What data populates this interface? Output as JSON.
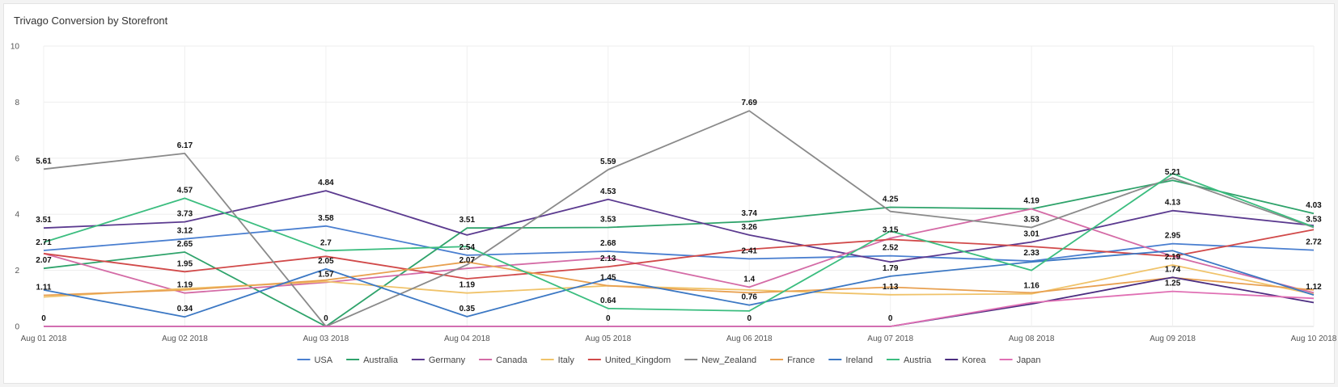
{
  "panel": {
    "title": "Trivago Conversion by Storefront"
  },
  "chart_data": {
    "type": "line",
    "title": "Trivago Conversion by Storefront",
    "xlabel": "",
    "ylabel": "",
    "ylim": [
      0,
      10
    ],
    "yticks": [
      0,
      2,
      4,
      6,
      8,
      10
    ],
    "grid": true,
    "legend_position": "bottom",
    "x": [
      "Aug 01 2018",
      "Aug 02 2018",
      "Aug 03 2018",
      "Aug 04 2018",
      "Aug 05 2018",
      "Aug 06 2018",
      "Aug 07 2018",
      "Aug 08 2018",
      "Aug 09 2018",
      "Aug 10 2018"
    ],
    "series": [
      {
        "name": "USA",
        "color": "#4a7fd0",
        "values": [
          2.71,
          3.12,
          3.58,
          2.54,
          2.68,
          2.41,
          2.52,
          2.33,
          2.95,
          2.72
        ]
      },
      {
        "name": "Australia",
        "color": "#2fa36b",
        "values": [
          2.07,
          2.65,
          0,
          3.51,
          3.53,
          3.74,
          4.25,
          4.19,
          5.21,
          4.03
        ]
      },
      {
        "name": "Germany",
        "color": "#5b3a8f",
        "values": [
          3.51,
          3.73,
          4.84,
          3.26,
          4.53,
          3.26,
          2.3,
          3.01,
          4.13,
          3.6
        ]
      },
      {
        "name": "Canada",
        "color": "#d46ba6",
        "values": [
          2.6,
          1.19,
          1.57,
          2.07,
          2.45,
          1.4,
          3.15,
          4.19,
          2.5,
          1.2
        ]
      },
      {
        "name": "Italy",
        "color": "#f0c36a",
        "values": [
          1.05,
          1.35,
          1.6,
          1.19,
          1.45,
          1.3,
          1.13,
          1.16,
          2.19,
          1.15
        ]
      },
      {
        "name": "United_Kingdom",
        "color": "#d14a4a",
        "values": [
          2.6,
          1.95,
          2.5,
          1.7,
          2.13,
          2.75,
          3.1,
          2.85,
          2.5,
          3.45
        ]
      },
      {
        "name": "New_Zealand",
        "color": "#8a8a8a",
        "values": [
          5.61,
          6.17,
          0,
          2.2,
          5.59,
          7.69,
          4.1,
          3.53,
          5.3,
          3.53
        ]
      },
      {
        "name": "France",
        "color": "#e8a050",
        "values": [
          1.11,
          1.3,
          1.65,
          2.3,
          1.45,
          1.2,
          1.4,
          1.2,
          1.74,
          1.3
        ]
      },
      {
        "name": "Ireland",
        "color": "#3c78c4",
        "values": [
          1.3,
          0.34,
          2.05,
          0.35,
          1.7,
          0.76,
          1.79,
          2.3,
          2.7,
          1.12
        ]
      },
      {
        "name": "Austria",
        "color": "#3bbd7f",
        "values": [
          3.0,
          4.57,
          2.7,
          2.85,
          0.64,
          0.55,
          3.4,
          2.0,
          5.45,
          3.55
        ]
      },
      {
        "name": "Korea",
        "color": "#4b2d80",
        "values": [
          0,
          0,
          0,
          0,
          0,
          0,
          0,
          0.8,
          1.75,
          0.85
        ]
      },
      {
        "name": "Japan",
        "color": "#e070b4",
        "values": [
          0,
          0,
          0,
          0,
          0,
          0,
          0,
          0.85,
          1.25,
          1.0
        ]
      }
    ],
    "data_labels": [
      {
        "x": "Aug 01 2018",
        "y": 5.61,
        "text": "5.61"
      },
      {
        "x": "Aug 01 2018",
        "y": 3.51,
        "text": "3.51"
      },
      {
        "x": "Aug 01 2018",
        "y": 2.71,
        "text": "2.71"
      },
      {
        "x": "Aug 01 2018",
        "y": 2.07,
        "text": "2.07"
      },
      {
        "x": "Aug 01 2018",
        "y": 1.11,
        "text": "1.11"
      },
      {
        "x": "Aug 01 2018",
        "y": 0,
        "text": "0"
      },
      {
        "x": "Aug 02 2018",
        "y": 6.17,
        "text": "6.17"
      },
      {
        "x": "Aug 02 2018",
        "y": 4.57,
        "text": "4.57"
      },
      {
        "x": "Aug 02 2018",
        "y": 3.73,
        "text": "3.73"
      },
      {
        "x": "Aug 02 2018",
        "y": 3.12,
        "text": "3.12"
      },
      {
        "x": "Aug 02 2018",
        "y": 2.65,
        "text": "2.65"
      },
      {
        "x": "Aug 02 2018",
        "y": 1.95,
        "text": "1.95"
      },
      {
        "x": "Aug 02 2018",
        "y": 1.19,
        "text": "1.19"
      },
      {
        "x": "Aug 02 2018",
        "y": 0.34,
        "text": "0.34"
      },
      {
        "x": "Aug 03 2018",
        "y": 4.84,
        "text": "4.84"
      },
      {
        "x": "Aug 03 2018",
        "y": 3.58,
        "text": "3.58"
      },
      {
        "x": "Aug 03 2018",
        "y": 2.7,
        "text": "2.7"
      },
      {
        "x": "Aug 03 2018",
        "y": 2.05,
        "text": "2.05"
      },
      {
        "x": "Aug 03 2018",
        "y": 1.57,
        "text": "1.57"
      },
      {
        "x": "Aug 03 2018",
        "y": 0,
        "text": "0"
      },
      {
        "x": "Aug 04 2018",
        "y": 3.51,
        "text": "3.51"
      },
      {
        "x": "Aug 04 2018",
        "y": 2.54,
        "text": "2.54"
      },
      {
        "x": "Aug 04 2018",
        "y": 2.07,
        "text": "2.07"
      },
      {
        "x": "Aug 04 2018",
        "y": 1.19,
        "text": "1.19"
      },
      {
        "x": "Aug 04 2018",
        "y": 0.35,
        "text": "0.35"
      },
      {
        "x": "Aug 05 2018",
        "y": 5.59,
        "text": "5.59"
      },
      {
        "x": "Aug 05 2018",
        "y": 4.53,
        "text": "4.53"
      },
      {
        "x": "Aug 05 2018",
        "y": 3.53,
        "text": "3.53"
      },
      {
        "x": "Aug 05 2018",
        "y": 2.68,
        "text": "2.68"
      },
      {
        "x": "Aug 05 2018",
        "y": 2.13,
        "text": "2.13"
      },
      {
        "x": "Aug 05 2018",
        "y": 1.45,
        "text": "1.45"
      },
      {
        "x": "Aug 05 2018",
        "y": 0.64,
        "text": "0.64"
      },
      {
        "x": "Aug 05 2018",
        "y": 0,
        "text": "0"
      },
      {
        "x": "Aug 06 2018",
        "y": 7.69,
        "text": "7.69"
      },
      {
        "x": "Aug 06 2018",
        "y": 3.74,
        "text": "3.74"
      },
      {
        "x": "Aug 06 2018",
        "y": 3.26,
        "text": "3.26"
      },
      {
        "x": "Aug 06 2018",
        "y": 2.41,
        "text": "2.41"
      },
      {
        "x": "Aug 06 2018",
        "y": 1.4,
        "text": "1.4"
      },
      {
        "x": "Aug 06 2018",
        "y": 0.76,
        "text": "0.76"
      },
      {
        "x": "Aug 06 2018",
        "y": 0,
        "text": "0"
      },
      {
        "x": "Aug 07 2018",
        "y": 4.25,
        "text": "4.25"
      },
      {
        "x": "Aug 07 2018",
        "y": 3.15,
        "text": "3.15"
      },
      {
        "x": "Aug 07 2018",
        "y": 2.52,
        "text": "2.52"
      },
      {
        "x": "Aug 07 2018",
        "y": 1.79,
        "text": "1.79"
      },
      {
        "x": "Aug 07 2018",
        "y": 1.13,
        "text": "1.13"
      },
      {
        "x": "Aug 07 2018",
        "y": 0,
        "text": "0"
      },
      {
        "x": "Aug 08 2018",
        "y": 4.19,
        "text": "4.19"
      },
      {
        "x": "Aug 08 2018",
        "y": 3.53,
        "text": "3.53"
      },
      {
        "x": "Aug 08 2018",
        "y": 3.01,
        "text": "3.01"
      },
      {
        "x": "Aug 08 2018",
        "y": 2.33,
        "text": "2.33"
      },
      {
        "x": "Aug 08 2018",
        "y": 1.16,
        "text": "1.16"
      },
      {
        "x": "Aug 09 2018",
        "y": 5.21,
        "text": "5.21"
      },
      {
        "x": "Aug 09 2018",
        "y": 4.13,
        "text": "4.13"
      },
      {
        "x": "Aug 09 2018",
        "y": 2.95,
        "text": "2.95"
      },
      {
        "x": "Aug 09 2018",
        "y": 2.19,
        "text": "2.19"
      },
      {
        "x": "Aug 09 2018",
        "y": 1.74,
        "text": "1.74"
      },
      {
        "x": "Aug 09 2018",
        "y": 1.25,
        "text": "1.25"
      },
      {
        "x": "Aug 10 2018",
        "y": 4.03,
        "text": "4.03"
      },
      {
        "x": "Aug 10 2018",
        "y": 3.53,
        "text": "3.53"
      },
      {
        "x": "Aug 10 2018",
        "y": 2.72,
        "text": "2.72"
      },
      {
        "x": "Aug 10 2018",
        "y": 1.12,
        "text": "1.12"
      }
    ]
  }
}
